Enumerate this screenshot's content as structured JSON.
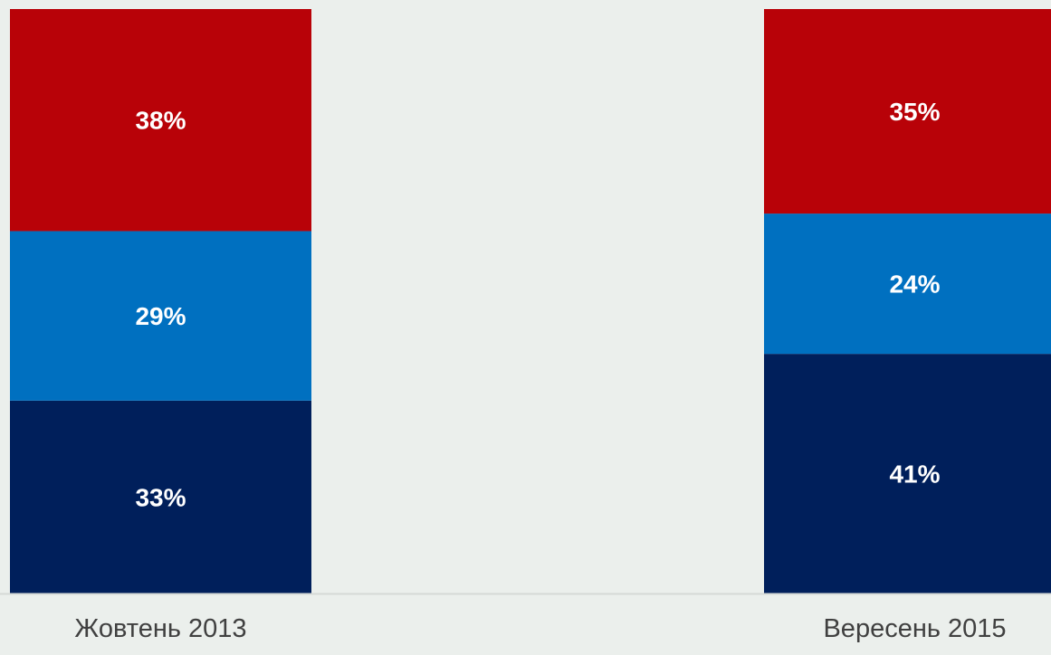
{
  "chart_data": {
    "type": "bar",
    "stacked": true,
    "normalized": true,
    "categories": [
      "Жовтень 2013",
      "Вересень 2015"
    ],
    "series": [
      {
        "values": [
          33,
          41
        ],
        "color": "#001f5b"
      },
      {
        "values": [
          29,
          24
        ],
        "color": "#0070c0"
      },
      {
        "values": [
          38,
          35
        ],
        "color": "#b80208"
      }
    ],
    "data_labels": [
      [
        "33%",
        "41%"
      ],
      [
        "29%",
        "24%"
      ],
      [
        "38%",
        "35%"
      ]
    ],
    "ylim": [
      0,
      100
    ],
    "grid": false,
    "legend": "none",
    "background": "#ebefec",
    "axis_color": "#d5d9d6",
    "label_color": "#ffffff",
    "category_label_color": "#404040"
  }
}
